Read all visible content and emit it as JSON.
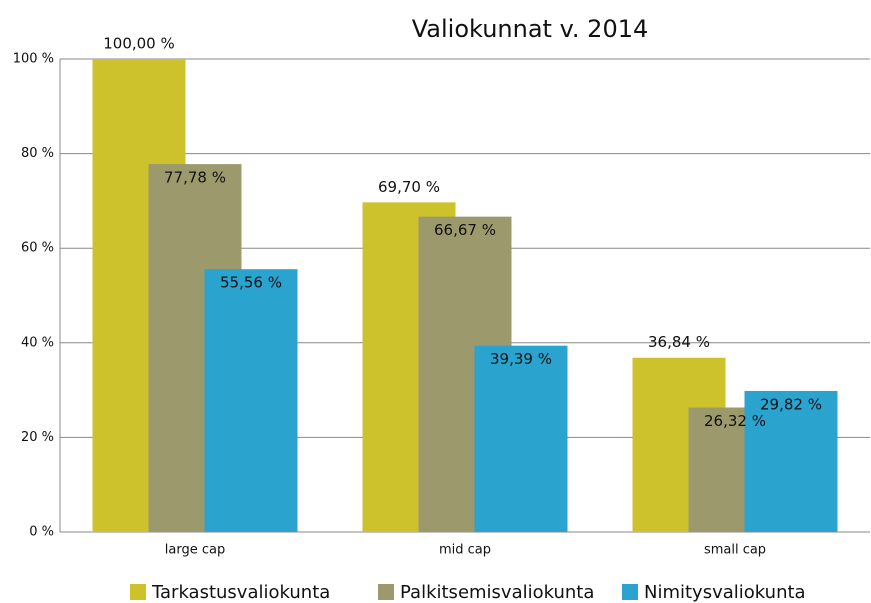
{
  "chart_data": {
    "type": "bar",
    "title": "Valiokunnat v. 2014",
    "categories": [
      "large cap",
      "mid cap",
      "small cap"
    ],
    "series": [
      {
        "name": "Tarkastusvaliokunta",
        "color": "#cdc22c",
        "values": [
          100.0,
          69.7,
          36.84
        ],
        "value_labels": [
          "100,00 %",
          "69,70 %",
          "36,84 %"
        ]
      },
      {
        "name": "Palkitsemisvaliokunta",
        "color": "#9c9a6c",
        "values": [
          77.78,
          66.67,
          26.32
        ],
        "value_labels": [
          "77,78 %",
          "66,67 %",
          "26,32 %"
        ]
      },
      {
        "name": "Nimitysvaliokunta",
        "color": "#2aa3cf",
        "values": [
          55.56,
          39.39,
          29.82
        ],
        "value_labels": [
          "55,56 %",
          "39,39 %",
          "29,82 %"
        ]
      }
    ],
    "ylim": [
      0,
      100
    ],
    "yticks": [
      {
        "value": 0,
        "label": "0 %"
      },
      {
        "value": 20,
        "label": "20 %"
      },
      {
        "value": 40,
        "label": "40 %"
      },
      {
        "value": 60,
        "label": "60 %"
      },
      {
        "value": 80,
        "label": "80 %"
      },
      {
        "value": 100,
        "label": "100 %"
      }
    ],
    "grid": true
  }
}
